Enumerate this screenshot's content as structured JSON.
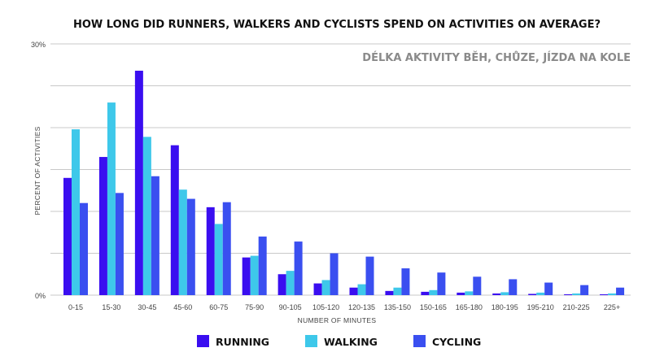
{
  "chart_data": {
    "type": "bar",
    "title": "HOW LONG DID RUNNERS, WALKERS AND CYCLISTS SPEND ON ACTIVITIES ON AVERAGE?",
    "subtitle": "DÉLKA AKTIVITY BĚH, CHŮZE, JÍZDA NA KOLE",
    "xlabel": "NUMBER OF MINUTES",
    "ylabel": "PERCENT OF ACTIVITIES",
    "ylim": [
      0,
      30
    ],
    "y_ticks": [
      "0%",
      "30%"
    ],
    "grid": true,
    "legend_position": "bottom",
    "categories": [
      "0-15",
      "15-30",
      "30-45",
      "45-60",
      "60-75",
      "75-90",
      "90-105",
      "105-120",
      "120-135",
      "135-150",
      "150-165",
      "165-180",
      "180-195",
      "195-210",
      "210-225",
      "225+"
    ],
    "series": [
      {
        "name": "RUNNING",
        "color": "#3a0ef0",
        "values": [
          14.0,
          16.5,
          26.8,
          17.9,
          10.5,
          4.5,
          2.5,
          1.4,
          0.9,
          0.5,
          0.4,
          0.3,
          0.2,
          0.15,
          0.1,
          0.1
        ]
      },
      {
        "name": "WALKING",
        "color": "#3ec8ea",
        "values": [
          19.8,
          23.0,
          18.9,
          12.6,
          8.5,
          4.7,
          2.9,
          1.8,
          1.3,
          0.9,
          0.6,
          0.45,
          0.35,
          0.3,
          0.2,
          0.2
        ]
      },
      {
        "name": "CYCLING",
        "color": "#3a4ff0",
        "values": [
          11.0,
          12.2,
          14.2,
          11.5,
          11.1,
          7.0,
          6.4,
          5.0,
          4.6,
          3.2,
          2.7,
          2.2,
          1.9,
          1.5,
          1.2,
          0.9
        ]
      }
    ]
  }
}
